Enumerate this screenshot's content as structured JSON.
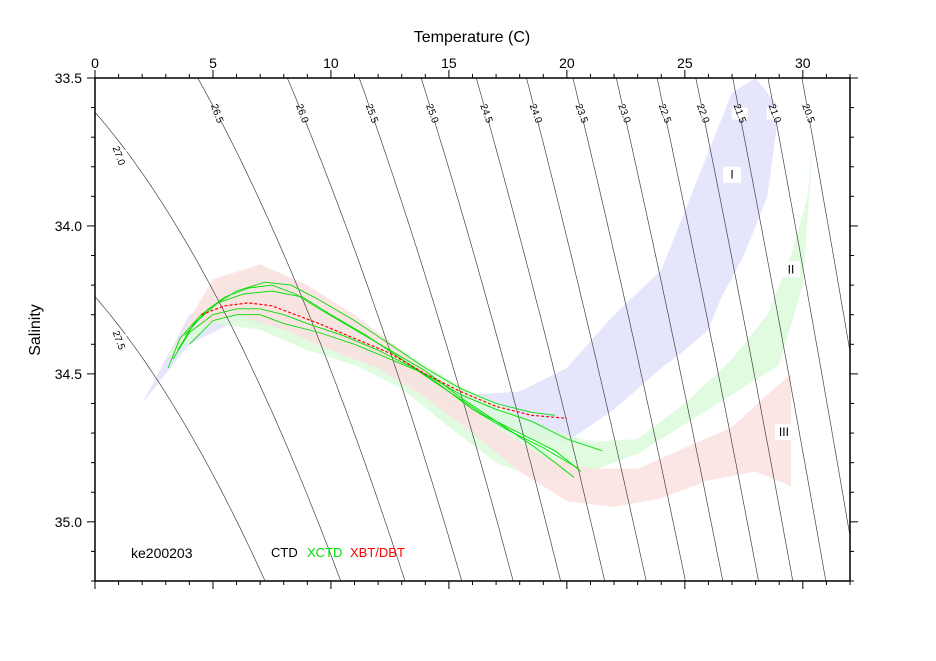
{
  "chart_data": {
    "type": "scatter",
    "xlabel": "Temperature (C)",
    "ylabel": "Salinity",
    "xlim": [
      0,
      32
    ],
    "ylim": [
      35.2,
      33.5
    ],
    "x_ticks": [
      "0",
      "5",
      "10",
      "15",
      "20",
      "25",
      "30"
    ],
    "x_tick_values": [
      0,
      5,
      10,
      15,
      20,
      25,
      30
    ],
    "y_ticks": [
      "33.5",
      "34.0",
      "34.5",
      "35.0"
    ],
    "y_tick_values": [
      33.5,
      34.0,
      34.5,
      35.0
    ],
    "y_reversed": true,
    "cruise_label": "ke200203",
    "legend": [
      {
        "name": "CTD",
        "color": "#000000"
      },
      {
        "name": "XCTD",
        "color": "#00dd00"
      },
      {
        "name": "XBT/DBT",
        "color": "#ff0000"
      }
    ],
    "isopycnals": [
      {
        "label": "27.5",
        "sigma": 27.5
      },
      {
        "label": "27.0",
        "sigma": 27.0
      },
      {
        "label": "26.5",
        "sigma": 26.5
      },
      {
        "label": "26.0",
        "sigma": 26.0
      },
      {
        "label": "25.5",
        "sigma": 25.5
      },
      {
        "label": "25.0",
        "sigma": 25.0
      },
      {
        "label": "24.5",
        "sigma": 24.5
      },
      {
        "label": "24.0",
        "sigma": 24.0
      },
      {
        "label": "23.5",
        "sigma": 23.5
      },
      {
        "label": "23.0",
        "sigma": 23.0
      },
      {
        "label": "22.5",
        "sigma": 22.5
      },
      {
        "label": "22.0",
        "sigma": 22.0
      },
      {
        "label": "21.5",
        "sigma": 21.5
      },
      {
        "label": "21.0",
        "sigma": 21.0
      },
      {
        "label": "20.5",
        "sigma": 20.5
      }
    ],
    "regions": [
      {
        "name": "I",
        "color": "#e0e0fb",
        "upper": [
          [
            2,
            34.6
          ],
          [
            4,
            34.3
          ],
          [
            6,
            34.22
          ],
          [
            8,
            34.24
          ],
          [
            10,
            34.32
          ],
          [
            12,
            34.42
          ],
          [
            14,
            34.52
          ],
          [
            16,
            34.57
          ],
          [
            18,
            34.56
          ],
          [
            20,
            34.48
          ],
          [
            22,
            34.3
          ],
          [
            24,
            34.15
          ],
          [
            25,
            33.95
          ],
          [
            26,
            33.75
          ],
          [
            27,
            33.55
          ],
          [
            28,
            33.5
          ],
          [
            29,
            33.6
          ]
        ],
        "lower": [
          [
            29,
            33.6
          ],
          [
            28.5,
            33.9
          ],
          [
            27.5,
            34.1
          ],
          [
            26.5,
            34.25
          ],
          [
            26,
            34.35
          ],
          [
            25,
            34.42
          ],
          [
            24,
            34.48
          ],
          [
            22,
            34.62
          ],
          [
            20,
            34.73
          ],
          [
            18,
            34.72
          ],
          [
            16,
            34.65
          ],
          [
            14,
            34.57
          ],
          [
            12,
            34.48
          ],
          [
            10,
            34.42
          ],
          [
            8,
            34.35
          ],
          [
            6,
            34.32
          ],
          [
            4,
            34.4
          ],
          [
            2,
            34.6
          ]
        ]
      },
      {
        "name": "II",
        "color": "#dcfadc",
        "upper": [
          [
            3,
            34.45
          ],
          [
            5,
            34.2
          ],
          [
            7,
            34.13
          ],
          [
            9,
            34.2
          ],
          [
            11,
            34.32
          ],
          [
            13,
            34.42
          ],
          [
            15,
            34.52
          ],
          [
            17,
            34.6
          ],
          [
            19,
            34.68
          ],
          [
            21,
            34.73
          ],
          [
            23,
            34.72
          ],
          [
            25,
            34.6
          ],
          [
            27,
            34.45
          ],
          [
            28.5,
            34.3
          ],
          [
            29.5,
            34.1
          ],
          [
            30.2,
            33.9
          ],
          [
            30.5,
            33.65
          ]
        ],
        "lower": [
          [
            30.5,
            33.65
          ],
          [
            30,
            34.2
          ],
          [
            29,
            34.47
          ],
          [
            27,
            34.57
          ],
          [
            25,
            34.67
          ],
          [
            23,
            34.77
          ],
          [
            21,
            34.83
          ],
          [
            19,
            34.86
          ],
          [
            17,
            34.8
          ],
          [
            15,
            34.68
          ],
          [
            13,
            34.55
          ],
          [
            11,
            34.47
          ],
          [
            9,
            34.42
          ],
          [
            7,
            34.35
          ],
          [
            5,
            34.33
          ],
          [
            3,
            34.45
          ]
        ]
      },
      {
        "name": "III",
        "color": "#fbe0e0",
        "upper": [
          [
            3,
            34.45
          ],
          [
            5,
            34.18
          ],
          [
            7,
            34.13
          ],
          [
            9,
            34.2
          ],
          [
            11,
            34.3
          ],
          [
            13,
            34.42
          ],
          [
            15,
            34.55
          ],
          [
            17,
            34.68
          ],
          [
            19,
            34.78
          ],
          [
            21,
            34.82
          ],
          [
            23,
            34.82
          ],
          [
            25,
            34.75
          ],
          [
            27,
            34.68
          ],
          [
            28.5,
            34.57
          ],
          [
            29.5,
            34.5
          ]
        ],
        "lower": [
          [
            29.5,
            34.5
          ],
          [
            29.5,
            34.88
          ],
          [
            28,
            34.83
          ],
          [
            26,
            34.86
          ],
          [
            24,
            34.92
          ],
          [
            22,
            34.95
          ],
          [
            20,
            34.93
          ],
          [
            18,
            34.83
          ],
          [
            16,
            34.7
          ],
          [
            14,
            34.58
          ],
          [
            12,
            34.48
          ],
          [
            10,
            34.42
          ],
          [
            8,
            34.35
          ],
          [
            6,
            34.3
          ],
          [
            4,
            34.35
          ],
          [
            3,
            34.45
          ]
        ]
      }
    ],
    "region_label_positions": [
      {
        "name": "I",
        "t": 27.0,
        "s": 33.83
      },
      {
        "name": "II",
        "t": 29.5,
        "s": 34.15
      },
      {
        "name": "III",
        "t": 29.2,
        "s": 34.7
      }
    ],
    "series": [
      {
        "name": "XCTD",
        "color": "#00dd00",
        "traces": [
          [
            [
              3.1,
              34.48
            ],
            [
              3.6,
              34.38
            ],
            [
              4.5,
              34.3
            ],
            [
              5.5,
              34.24
            ],
            [
              6.5,
              34.21
            ],
            [
              7.5,
              34.2
            ],
            [
              8.5,
              34.23
            ],
            [
              9.5,
              34.28
            ],
            [
              11,
              34.35
            ],
            [
              12.5,
              34.42
            ],
            [
              14,
              34.49
            ],
            [
              15.5,
              34.58
            ],
            [
              17,
              34.66
            ],
            [
              18.5,
              34.74
            ],
            [
              19.5,
              34.8
            ],
            [
              20.3,
              34.85
            ]
          ],
          [
            [
              3.3,
              34.45
            ],
            [
              4,
              34.36
            ],
            [
              5,
              34.3
            ],
            [
              6,
              34.28
            ],
            [
              7,
              34.28
            ],
            [
              8,
              34.3
            ],
            [
              9,
              34.33
            ],
            [
              10.5,
              34.37
            ],
            [
              12,
              34.42
            ],
            [
              13.5,
              34.48
            ],
            [
              15,
              34.56
            ],
            [
              16.5,
              34.64
            ],
            [
              18,
              34.7
            ],
            [
              19.5,
              34.76
            ],
            [
              20.6,
              34.83
            ]
          ],
          [
            [
              3.5,
              34.42
            ],
            [
              4.2,
              34.33
            ],
            [
              5.2,
              34.26
            ],
            [
              6.3,
              34.23
            ],
            [
              7.5,
              34.22
            ],
            [
              8.8,
              34.24
            ],
            [
              10,
              34.3
            ],
            [
              11.5,
              34.37
            ],
            [
              13,
              34.45
            ],
            [
              14.5,
              34.53
            ],
            [
              16,
              34.62
            ],
            [
              17.5,
              34.69
            ],
            [
              19,
              34.75
            ],
            [
              20.5,
              34.82
            ]
          ],
          [
            [
              4,
              34.4
            ],
            [
              5,
              34.32
            ],
            [
              6,
              34.3
            ],
            [
              7,
              34.3
            ],
            [
              8,
              34.33
            ],
            [
              9.5,
              34.36
            ],
            [
              11,
              34.4
            ],
            [
              12.5,
              34.45
            ],
            [
              14,
              34.5
            ],
            [
              15.5,
              34.57
            ],
            [
              17,
              34.62
            ],
            [
              18.5,
              34.66
            ],
            [
              20,
              34.72
            ],
            [
              21.5,
              34.76
            ]
          ],
          [
            [
              3.8,
              34.37
            ],
            [
              4.8,
              34.28
            ],
            [
              6,
              34.22
            ],
            [
              7.2,
              34.19
            ],
            [
              8.3,
              34.2
            ],
            [
              9.5,
              34.25
            ],
            [
              11,
              34.32
            ],
            [
              12.5,
              34.4
            ],
            [
              14,
              34.48
            ],
            [
              15.5,
              34.55
            ],
            [
              17,
              34.6
            ],
            [
              18.5,
              34.63
            ],
            [
              19.5,
              34.64
            ]
          ]
        ]
      },
      {
        "name": "XBT/DBT",
        "color": "#ff0000",
        "traces": [
          [
            [
              4.5,
              34.3
            ],
            [
              5.5,
              34.27
            ],
            [
              6.5,
              34.26
            ],
            [
              7.5,
              34.27
            ],
            [
              8.5,
              34.3
            ],
            [
              9.5,
              34.33
            ],
            [
              11,
              34.38
            ],
            [
              12.5,
              34.43
            ],
            [
              14,
              34.5
            ],
            [
              15.5,
              34.56
            ],
            [
              17,
              34.61
            ],
            [
              18.5,
              34.64
            ],
            [
              20,
              34.65
            ]
          ]
        ]
      }
    ]
  }
}
